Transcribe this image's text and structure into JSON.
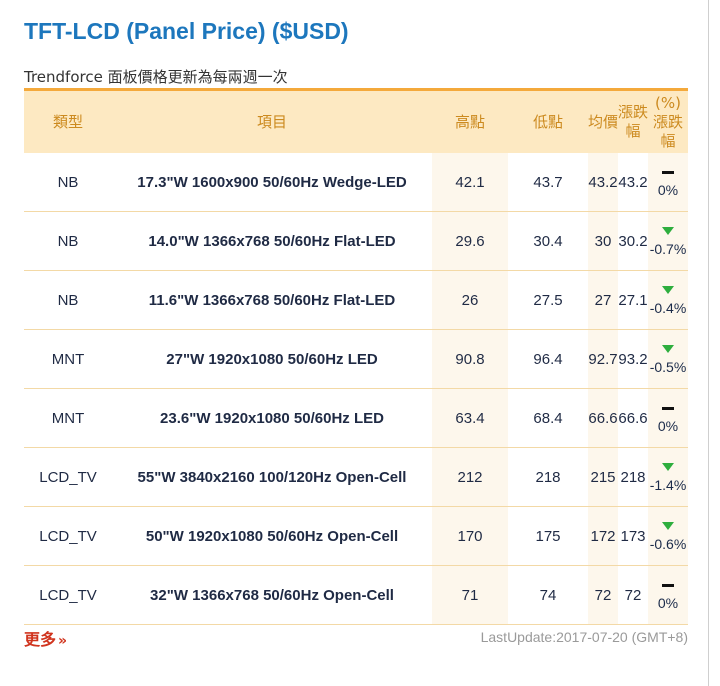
{
  "page": {
    "title": "TFT-LCD (Panel Price) ($USD)",
    "subtitle": "Trendforce 面板價格更新為每兩週一次"
  },
  "table": {
    "headers": {
      "type": "類型",
      "item": "項目",
      "high": "高點",
      "low": "低點",
      "avg": "均價",
      "change": "漲跌幅",
      "pct_change": "(%)漲跌幅"
    },
    "rows": [
      {
        "type": "NB",
        "item": "17.3\"W 1600x900 50/60Hz Wedge-LED",
        "high": "42.1",
        "low": "43.7",
        "avg": "43.2",
        "change": "43.2",
        "trend": "flat",
        "pct": "0%"
      },
      {
        "type": "NB",
        "item": "14.0\"W 1366x768 50/60Hz Flat-LED",
        "high": "29.6",
        "low": "30.4",
        "avg": "30",
        "change": "30.2",
        "trend": "down",
        "pct": "-0.7%"
      },
      {
        "type": "NB",
        "item": "11.6\"W 1366x768 50/60Hz Flat-LED",
        "high": "26",
        "low": "27.5",
        "avg": "27",
        "change": "27.1",
        "trend": "down",
        "pct": "-0.4%"
      },
      {
        "type": "MNT",
        "item": "27\"W 1920x1080 50/60Hz LED",
        "high": "90.8",
        "low": "96.4",
        "avg": "92.7",
        "change": "93.2",
        "trend": "down",
        "pct": "-0.5%"
      },
      {
        "type": "MNT",
        "item": "23.6\"W 1920x1080 50/60Hz LED",
        "high": "63.4",
        "low": "68.4",
        "avg": "66.6",
        "change": "66.6",
        "trend": "flat",
        "pct": "0%"
      },
      {
        "type": "LCD_TV",
        "item": "55\"W 3840x2160 100/120Hz Open-Cell",
        "high": "212",
        "low": "218",
        "avg": "215",
        "change": "218",
        "trend": "down",
        "pct": "-1.4%"
      },
      {
        "type": "LCD_TV",
        "item": "50\"W 1920x1080 50/60Hz Open-Cell",
        "high": "170",
        "low": "175",
        "avg": "172",
        "change": "173",
        "trend": "down",
        "pct": "-0.6%"
      },
      {
        "type": "LCD_TV",
        "item": "32\"W 1366x768 50/60Hz Open-Cell",
        "high": "71",
        "low": "74",
        "avg": "72",
        "change": "72",
        "trend": "flat",
        "pct": "0%"
      }
    ]
  },
  "footer": {
    "more_label": "更多",
    "more_icon": "double-chevron-right-icon",
    "last_update": "LastUpdate:2017-07-20 (GMT+8)"
  },
  "colors": {
    "title": "#1d77bd",
    "header_bg": "#fde9c2",
    "header_text": "#cc8a1f",
    "border_accent": "#f4a93b",
    "down_arrow": "#2eae3e",
    "more_link": "#d0341e"
  }
}
